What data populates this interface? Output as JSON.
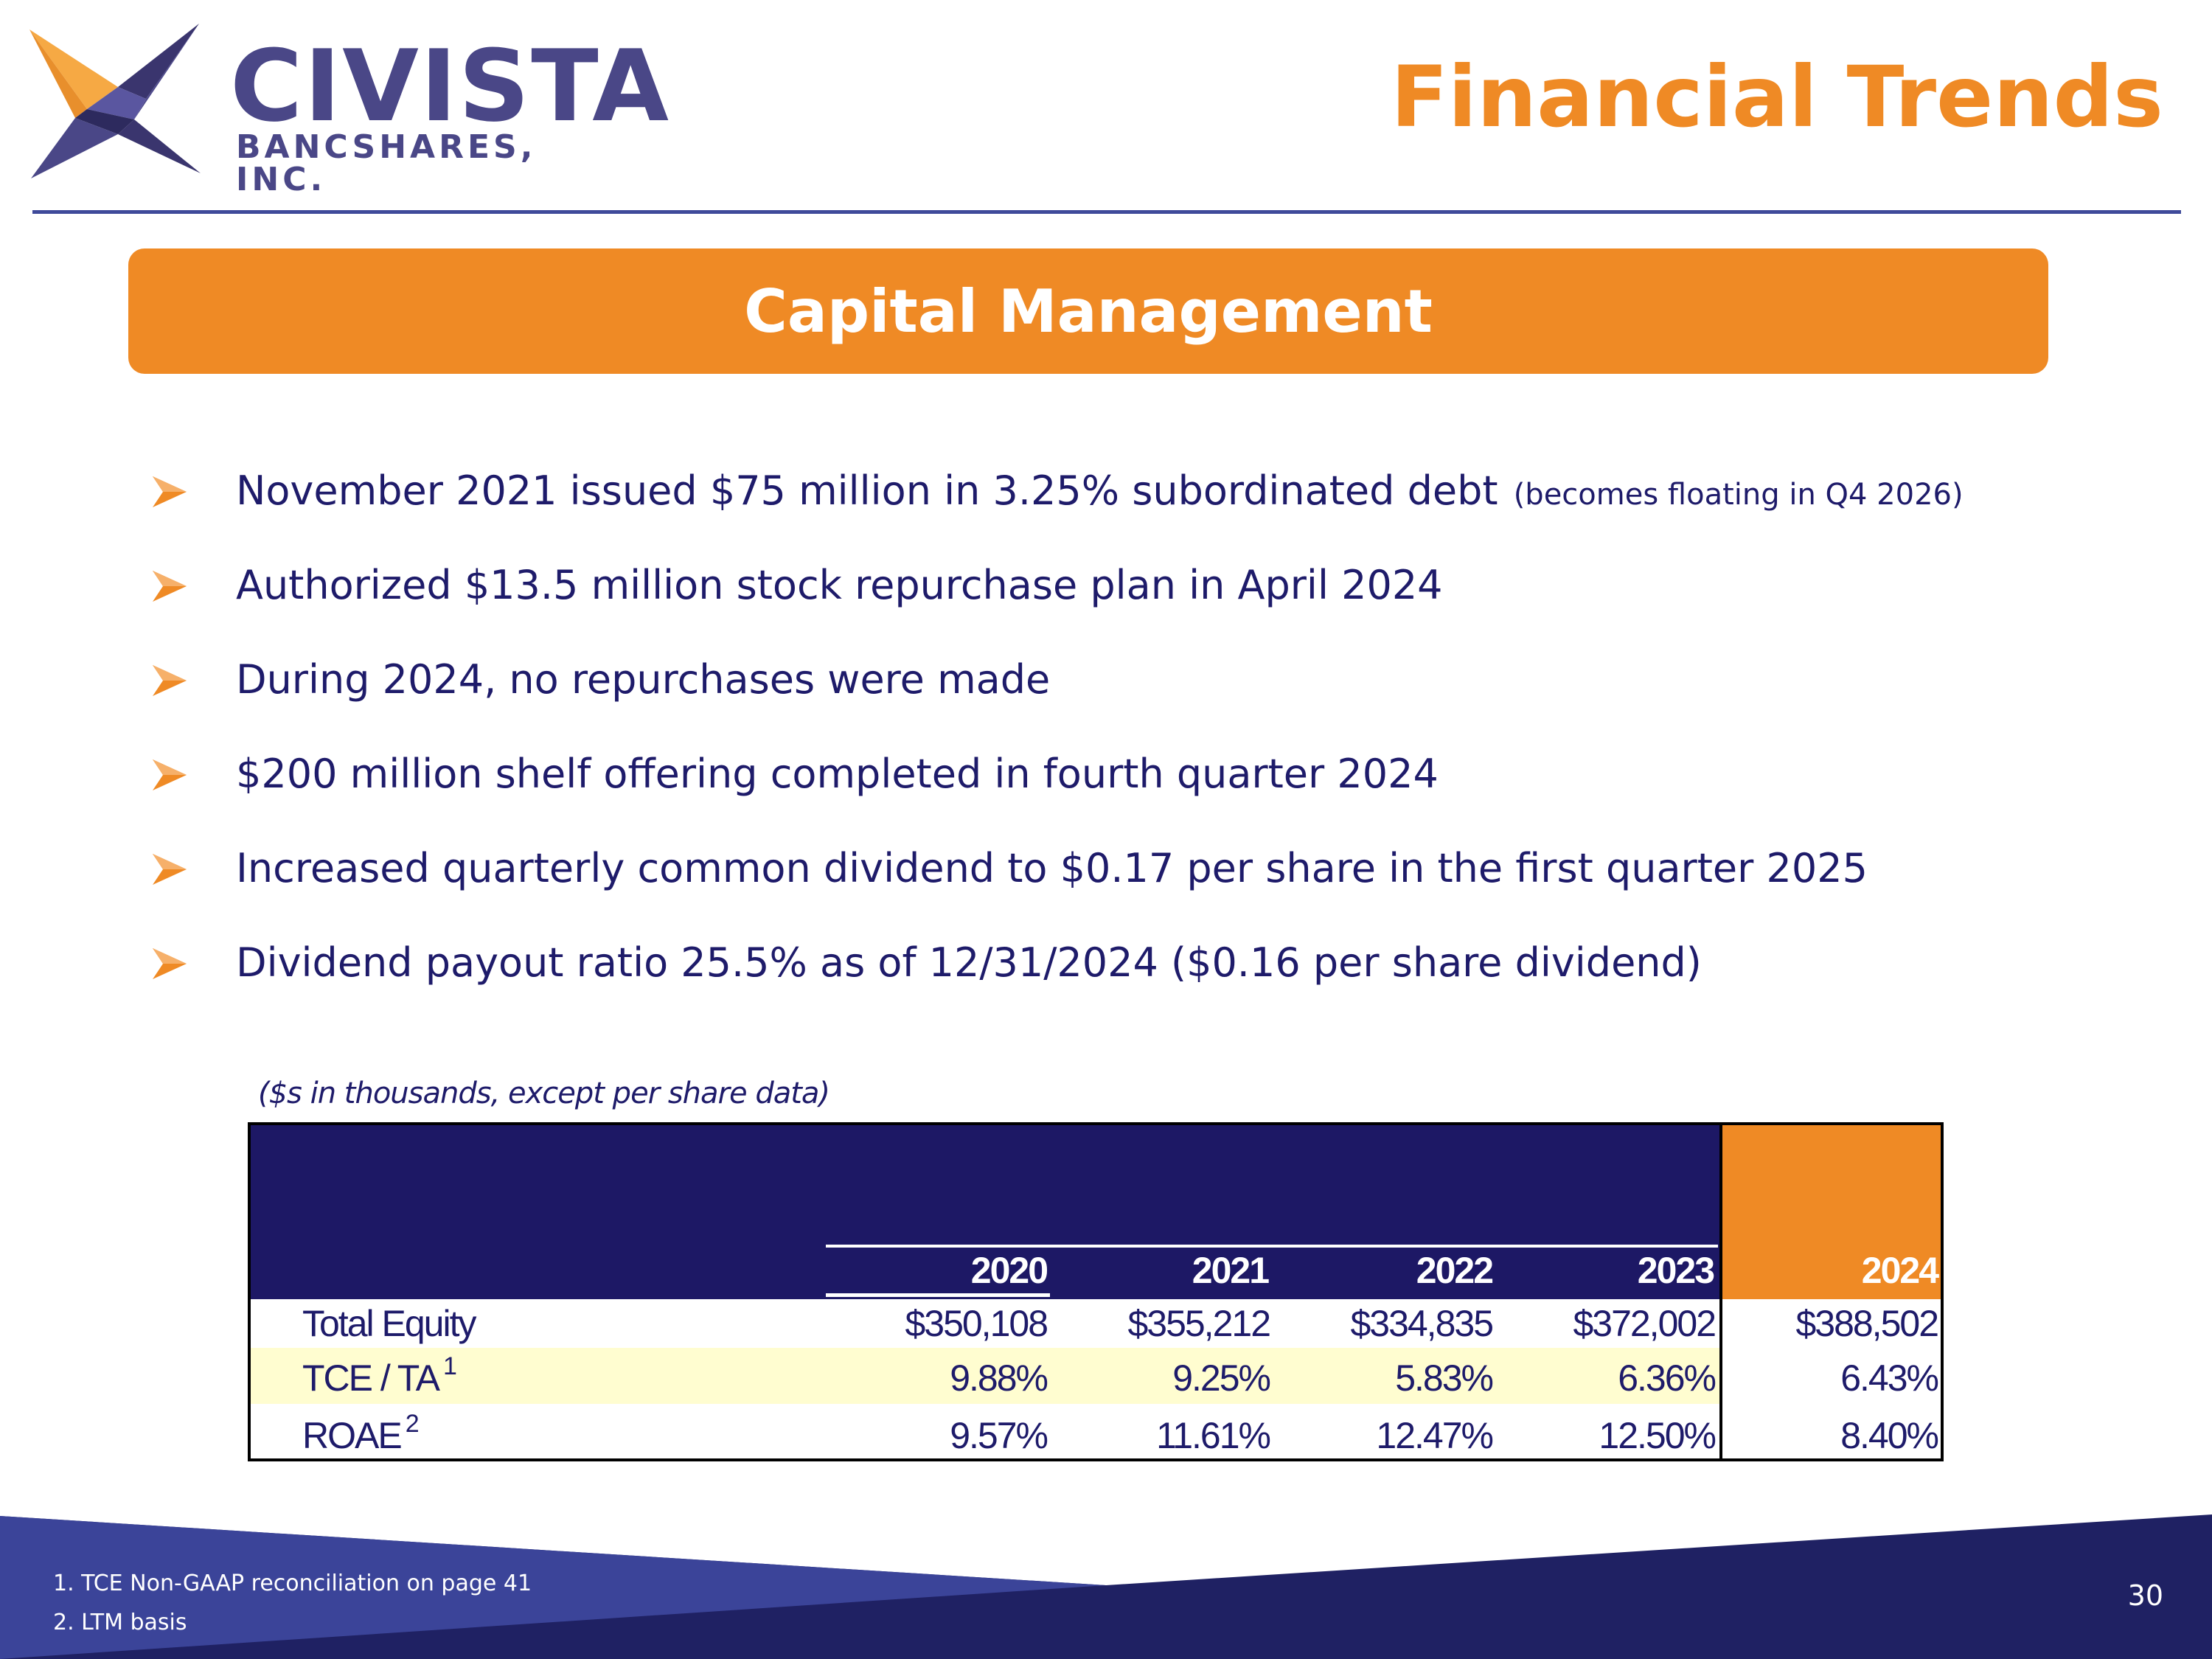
{
  "brand": {
    "name": "CIVISTA",
    "subtitle": "BANCSHARES, INC.",
    "colors": {
      "navy": "#1d1865",
      "purple": "#4a4787",
      "orange": "#ef8a25",
      "header_rule": "#3f4a9a",
      "highlight_row": "#fffdd0"
    }
  },
  "header": {
    "title": "Financial Trends"
  },
  "section": {
    "title": "Capital Management"
  },
  "bullets": [
    {
      "text": "November 2021 issued $75 million in 3.25% subordinated debt",
      "note": "(becomes floating in Q4 2026)"
    },
    {
      "text": "Authorized $13.5 million stock repurchase plan in April 2024",
      "note": ""
    },
    {
      "text": "During 2024, no repurchases were made",
      "note": ""
    },
    {
      "text": "$200 million shelf offering completed in fourth quarter 2024",
      "note": ""
    },
    {
      "text": "Increased quarterly common dividend to $0.17 per share in the first quarter 2025",
      "note": ""
    },
    {
      "text": "Dividend payout ratio 25.5% as of 12/31/2024 ($0.16 per share dividend)",
      "note": ""
    }
  ],
  "table": {
    "note": "($s in thousands, except per share data)",
    "years": [
      "2020",
      "2021",
      "2022",
      "2023",
      "2024"
    ],
    "rows": [
      {
        "label": "Total Equity",
        "sup": "",
        "values": [
          "$350,108",
          "$355,212",
          "$334,835",
          "$372,002",
          "$388,502"
        ]
      },
      {
        "label": "TCE / TA",
        "sup": "1",
        "values": [
          "9.88%",
          "9.25%",
          "5.83%",
          "6.36%",
          "6.43%"
        ]
      },
      {
        "label": "ROAE",
        "sup": "2",
        "values": [
          "9.57%",
          "11.61%",
          "12.47%",
          "12.50%",
          "8.40%"
        ]
      }
    ]
  },
  "footer": {
    "footnotes": [
      "1. TCE Non-GAAP reconciliation on page 41",
      "2. LTM basis"
    ],
    "page_number": "30"
  }
}
